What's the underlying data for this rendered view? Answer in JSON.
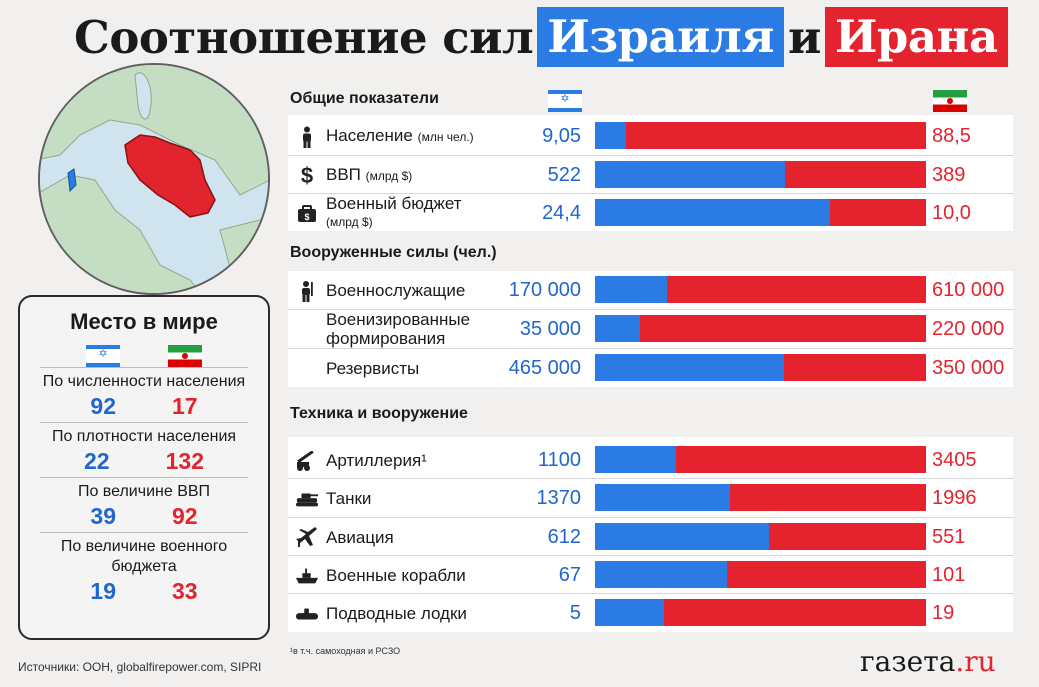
{
  "title": {
    "part1": "Соотношение сил",
    "israel": "Израиля",
    "and": "и",
    "iran": "Ирана"
  },
  "colors": {
    "israel": "#2a7be4",
    "iran": "#e4232e"
  },
  "icons": {
    "israel_flag": "israel-flag-icon",
    "iran_flag": "iran-flag-icon"
  },
  "rank_box": {
    "title": "Место в мире",
    "items": [
      {
        "label": "По численности населения",
        "israel": "92",
        "iran": "17"
      },
      {
        "label": "По плотности населения",
        "israel": "22",
        "iran": "132"
      },
      {
        "label": "По величине ВВП",
        "israel": "39",
        "iran": "92"
      },
      {
        "label": "По величине военного бюджета",
        "israel": "19",
        "iran": "33"
      }
    ]
  },
  "chart_data": {
    "type": "bar",
    "sections": [
      {
        "title": "Общие показатели",
        "rows": [
          {
            "label": "Население",
            "unit": "(млн чел.)",
            "icon": "person-icon",
            "israel_label": "9,05",
            "iran_label": "88,5",
            "israel": 9.05,
            "iran": 88.5
          },
          {
            "label": "ВВП",
            "unit": "(млрд $)",
            "icon": "dollar-icon",
            "israel_label": "522",
            "iran_label": "389",
            "israel": 522,
            "iran": 389
          },
          {
            "label": "Военный бюджет",
            "unit": "(млрд $)",
            "icon": "money-bag-icon",
            "israel_label": "24,4",
            "iran_label": "10,0",
            "israel": 24.4,
            "iran": 10.0
          }
        ]
      },
      {
        "title": "Вооруженные силы (чел.)",
        "rows": [
          {
            "label": "Военнослужащие",
            "unit": "",
            "icon": "soldier-icon",
            "israel_label": "170 000",
            "iran_label": "610 000",
            "israel": 170000,
            "iran": 610000
          },
          {
            "label": "Военизированные формирования",
            "unit": "",
            "icon": "",
            "israel_label": "35 000",
            "iran_label": "220 000",
            "israel": 35000,
            "iran": 220000
          },
          {
            "label": "Резервисты",
            "unit": "",
            "icon": "",
            "israel_label": "465 000",
            "iran_label": "350 000",
            "israel": 465000,
            "iran": 350000
          }
        ]
      },
      {
        "title": "Техника и вооружение",
        "rows": [
          {
            "label": "Артиллерия¹",
            "unit": "",
            "icon": "artillery-icon",
            "israel_label": "1100",
            "iran_label": "3405",
            "israel": 1100,
            "iran": 3405
          },
          {
            "label": "Танки",
            "unit": "",
            "icon": "tank-icon",
            "israel_label": "1370",
            "iran_label": "1996",
            "israel": 1370,
            "iran": 1996
          },
          {
            "label": "Авиация",
            "unit": "",
            "icon": "aircraft-icon",
            "israel_label": "612",
            "iran_label": "551",
            "israel": 612,
            "iran": 551
          },
          {
            "label": "Военные корабли",
            "unit": "",
            "icon": "warship-icon",
            "israel_label": "67",
            "iran_label": "101",
            "israel": 67,
            "iran": 101
          },
          {
            "label": "Подводные лодки",
            "unit": "",
            "icon": "submarine-icon",
            "israel_label": "5",
            "iran_label": "19",
            "israel": 5,
            "iran": 19
          }
        ]
      }
    ]
  },
  "footnote": "¹в т.ч. самоходная и РСЗО",
  "source": "Источники: ООН, globalfirepower.com, SIPRI",
  "logo": {
    "main": "газета",
    "suffix": ".ru"
  }
}
